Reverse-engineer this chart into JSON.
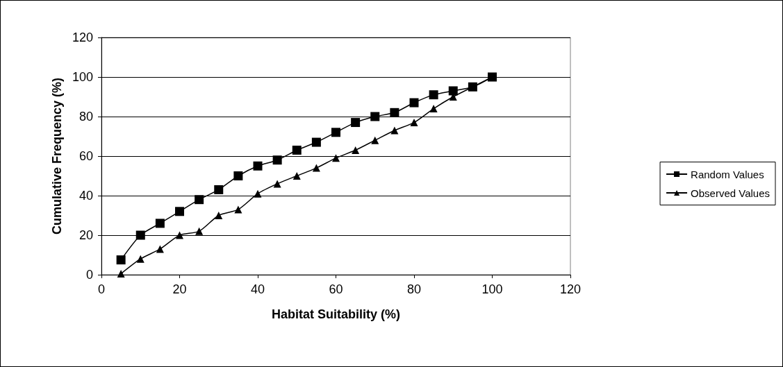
{
  "chart_data": {
    "type": "line",
    "xlabel": "Habitat Suitability (%)",
    "ylabel": "Cumulative Frequency (%)",
    "x": [
      5,
      10,
      15,
      20,
      25,
      30,
      35,
      40,
      45,
      50,
      55,
      60,
      65,
      70,
      75,
      80,
      85,
      90,
      95,
      100
    ],
    "series": [
      {
        "name": "Random Values",
        "color": "#000000",
        "marker": "square",
        "values": [
          7.5,
          20,
          26,
          32,
          38,
          43,
          50,
          55,
          58,
          63,
          67,
          72,
          77,
          80,
          82,
          87,
          91,
          93,
          95,
          100
        ]
      },
      {
        "name": "Observed Values",
        "color": "#000000",
        "marker": "triangle",
        "values": [
          0.5,
          8,
          13,
          20,
          22,
          30,
          33,
          41,
          46,
          50,
          54,
          59,
          63,
          68,
          73,
          77,
          84,
          90,
          95,
          100
        ]
      }
    ],
    "xlim": [
      0,
      120
    ],
    "xticks": [
      0,
      20,
      40,
      60,
      80,
      100,
      120
    ],
    "ylim": [
      0,
      120
    ],
    "yticks": [
      0,
      20,
      40,
      60,
      80,
      100,
      120
    ],
    "grid": "y",
    "legend": "right",
    "line_style": "solid"
  }
}
